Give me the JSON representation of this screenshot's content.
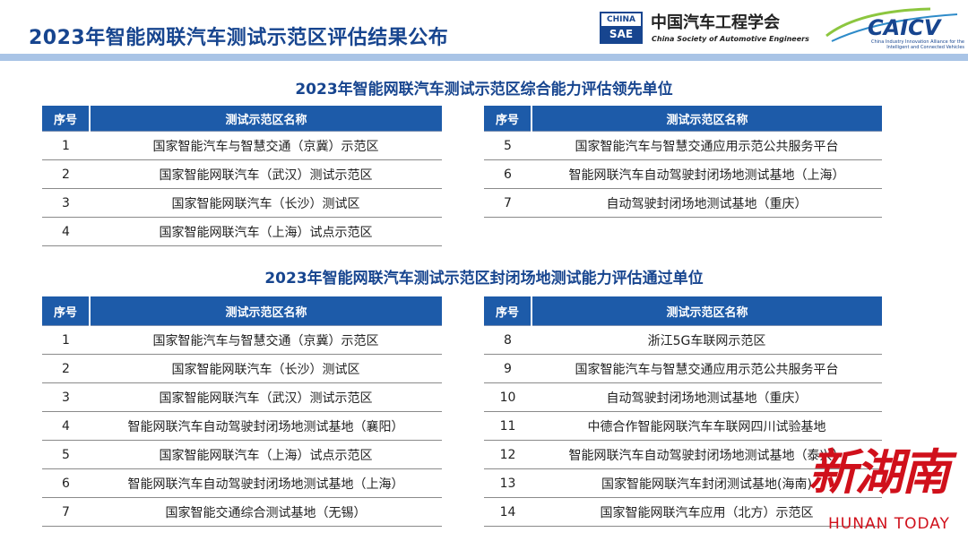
{
  "header": {
    "title": "2023年智能网联汽车测试示范区评估结果公布",
    "china_label": "CHINA",
    "sae_label": "SAE",
    "org_name_cn": "中国汽车工程学会",
    "org_name_en": "China Society of Automotive Engineers",
    "caicv_logo": "CAICV",
    "caicv_subtitle": "China Industry Innovation Alliance for the Intelligent and Connected Vehicles"
  },
  "section1": {
    "title": "2023年智能网联汽车测试示范区综合能力评估领先单位",
    "col_index": "序号",
    "col_name": "测试示范区名称",
    "left_rows": [
      {
        "n": "1",
        "name": "国家智能汽车与智慧交通（京冀）示范区"
      },
      {
        "n": "2",
        "name": "国家智能网联汽车（武汉）测试示范区"
      },
      {
        "n": "3",
        "name": "国家智能网联汽车（长沙）测试区"
      },
      {
        "n": "4",
        "name": "国家智能网联汽车（上海）试点示范区"
      }
    ],
    "right_rows": [
      {
        "n": "5",
        "name": "国家智能汽车与智慧交通应用示范公共服务平台"
      },
      {
        "n": "6",
        "name": "智能网联汽车自动驾驶封闭场地测试基地（上海）"
      },
      {
        "n": "7",
        "name": "自动驾驶封闭场地测试基地（重庆）"
      }
    ]
  },
  "section2": {
    "title": "2023年智能网联汽车测试示范区封闭场地测试能力评估通过单位",
    "col_index": "序号",
    "col_name": "测试示范区名称",
    "left_rows": [
      {
        "n": "1",
        "name": "国家智能汽车与智慧交通（京冀）示范区"
      },
      {
        "n": "2",
        "name": "国家智能网联汽车（长沙）测试区"
      },
      {
        "n": "3",
        "name": "国家智能网联汽车（武汉）测试示范区"
      },
      {
        "n": "4",
        "name": "智能网联汽车自动驾驶封闭场地测试基地（襄阳）"
      },
      {
        "n": "5",
        "name": "国家智能网联汽车（上海）试点示范区"
      },
      {
        "n": "6",
        "name": "智能网联汽车自动驾驶封闭场地测试基地（上海）"
      },
      {
        "n": "7",
        "name": "国家智能交通综合测试基地（无锡）"
      }
    ],
    "right_rows": [
      {
        "n": "8",
        "name": "浙江5G车联网示范区"
      },
      {
        "n": "9",
        "name": "国家智能汽车与智慧交通应用示范公共服务平台"
      },
      {
        "n": "10",
        "name": "自动驾驶封闭场地测试基地（重庆）"
      },
      {
        "n": "11",
        "name": "中德合作智能网联汽车车联网四川试验基地"
      },
      {
        "n": "12",
        "name": "智能网联汽车自动驾驶封闭场地测试基地（泰兴）"
      },
      {
        "n": "13",
        "name": "国家智能网联汽车封闭测试基地(海南)"
      },
      {
        "n": "14",
        "name": "国家智能网联汽车应用（北方）示范区"
      }
    ]
  },
  "watermark": {
    "cn": "新湖南",
    "en": "HUNAN TODAY"
  }
}
